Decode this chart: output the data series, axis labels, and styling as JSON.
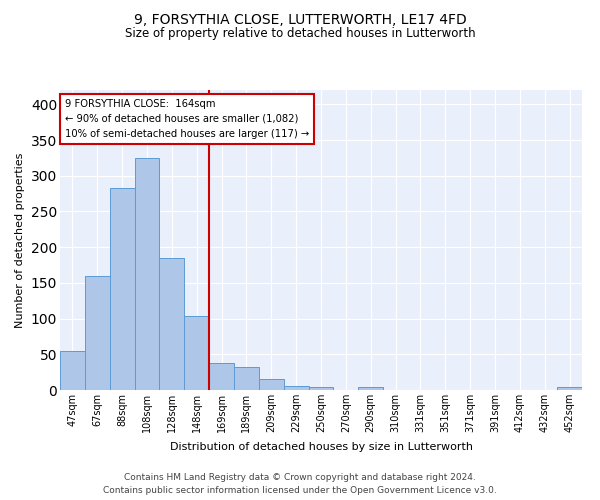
{
  "title": "9, FORSYTHIA CLOSE, LUTTERWORTH, LE17 4FD",
  "subtitle": "Size of property relative to detached houses in Lutterworth",
  "xlabel": "Distribution of detached houses by size in Lutterworth",
  "ylabel": "Number of detached properties",
  "bar_labels": [
    "47sqm",
    "67sqm",
    "88sqm",
    "108sqm",
    "128sqm",
    "148sqm",
    "169sqm",
    "189sqm",
    "209sqm",
    "229sqm",
    "250sqm",
    "270sqm",
    "290sqm",
    "310sqm",
    "331sqm",
    "351sqm",
    "371sqm",
    "391sqm",
    "412sqm",
    "432sqm",
    "452sqm"
  ],
  "bar_values": [
    55,
    160,
    283,
    325,
    185,
    103,
    38,
    32,
    15,
    6,
    4,
    0,
    4,
    0,
    0,
    0,
    0,
    0,
    0,
    0,
    4
  ],
  "bar_color": "#aec6e8",
  "bar_edge_color": "#5b9bd5",
  "vline_x": 5.5,
  "vline_color": "#cc0000",
  "annotation_text": "9 FORSYTHIA CLOSE:  164sqm\n← 90% of detached houses are smaller (1,082)\n10% of semi-detached houses are larger (117) →",
  "annotation_box_color": "#ffffff",
  "annotation_box_edge": "#cc0000",
  "ylim": [
    0,
    420
  ],
  "yticks": [
    0,
    50,
    100,
    150,
    200,
    250,
    300,
    350,
    400
  ],
  "footer_line1": "Contains HM Land Registry data © Crown copyright and database right 2024.",
  "footer_line2": "Contains public sector information licensed under the Open Government Licence v3.0.",
  "plot_bg_color": "#eaf0fb"
}
